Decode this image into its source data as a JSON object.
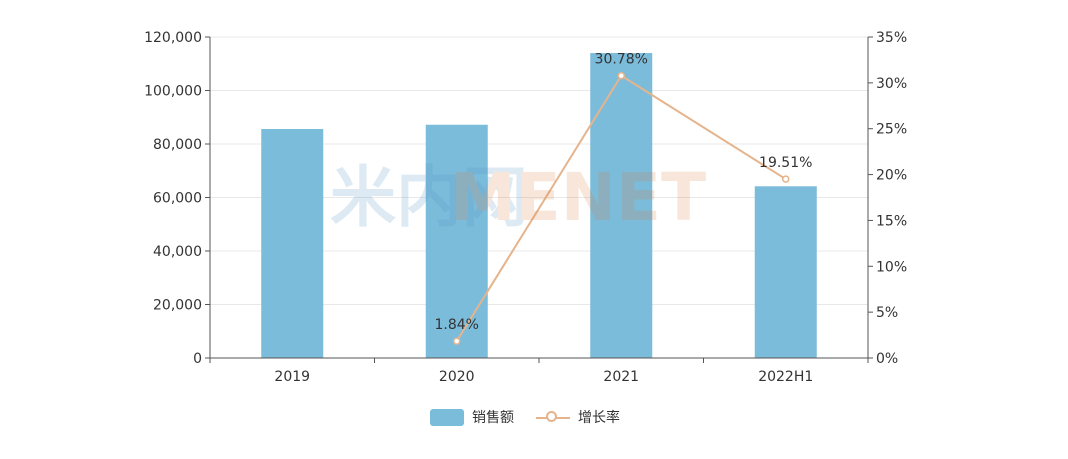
{
  "chart_data": {
    "type": "bar+line",
    "categories": [
      "2019",
      "2020",
      "2021",
      "2022H1"
    ],
    "series": [
      {
        "name": "销售额",
        "type": "bar",
        "axis": "left",
        "values": [
          85600,
          87200,
          114000,
          64200
        ],
        "color": "#7bbcdb"
      },
      {
        "name": "增长率",
        "type": "line",
        "axis": "right",
        "values": [
          null,
          1.84,
          30.78,
          19.51
        ],
        "labels": [
          "",
          "1.84%",
          "30.78%",
          "19.51%"
        ],
        "color": "#e5b48c"
      }
    ],
    "y_left": {
      "min": 0,
      "max": 120000,
      "ticks": [
        0,
        20000,
        40000,
        60000,
        80000,
        100000,
        120000
      ],
      "tick_labels": [
        "0",
        "20,000",
        "40,000",
        "60,000",
        "80,000",
        "100,000",
        "120,000"
      ]
    },
    "y_right": {
      "min": 0,
      "max": 35,
      "ticks": [
        0,
        5,
        10,
        15,
        20,
        25,
        30,
        35
      ],
      "tick_labels": [
        "0%",
        "5%",
        "10%",
        "15%",
        "20%",
        "25%",
        "30%",
        "35%"
      ]
    },
    "grid": true,
    "legend_position": "bottom-center"
  },
  "watermark": {
    "text": "MENET",
    "prefix": "米内网"
  },
  "colors": {
    "axis": "#555555",
    "grid": "#e8e8e8",
    "tick_text": "#333333"
  }
}
